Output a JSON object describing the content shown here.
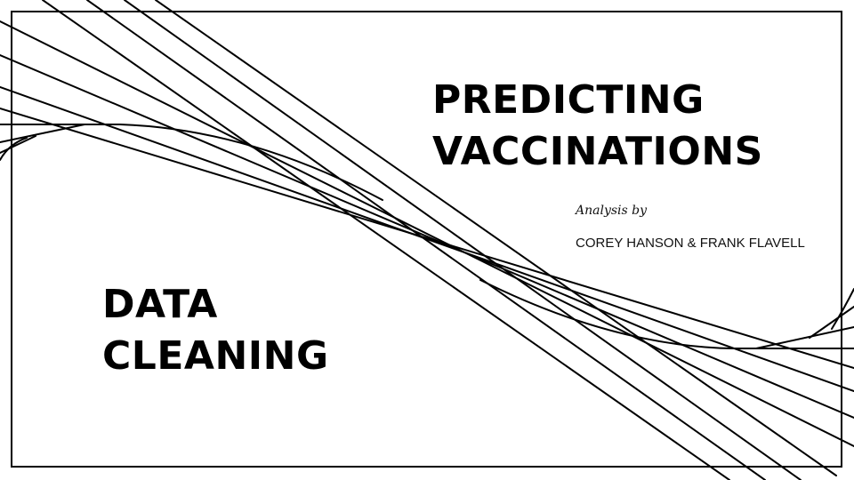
{
  "title": {
    "line1": "PREDICTING",
    "line2": "VACCINATIONS"
  },
  "byline": "Analysis by",
  "authors": "COREY HANSON & FRANK FLAVELL",
  "section": {
    "line1": "DATA",
    "line2": "CLEANING"
  },
  "decoration": {
    "line_color": "#000000",
    "frame_color": "#000000",
    "background": "#ffffff"
  }
}
